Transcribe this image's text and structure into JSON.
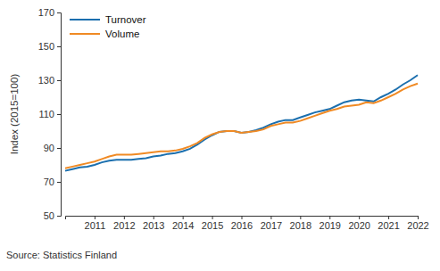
{
  "chart_data": {
    "type": "line",
    "y_label": "Index (2015=100)",
    "annotations": [
      "Source: Statistics Finland"
    ],
    "categories": [
      null,
      null,
      null,
      null,
      "2011",
      null,
      null,
      null,
      "2012",
      null,
      null,
      null,
      "2013",
      null,
      null,
      null,
      "2014",
      null,
      null,
      null,
      "2015",
      null,
      null,
      null,
      "2016",
      null,
      null,
      null,
      "2017",
      null,
      null,
      null,
      "2018",
      null,
      null,
      null,
      "2019",
      null,
      null,
      null,
      "2020",
      null,
      null,
      null,
      "2021",
      null,
      null,
      null,
      "2022"
    ],
    "series": [
      {
        "name": "Turnover",
        "color": "#1b6fae",
        "values": [
          76.5,
          77.5,
          78.5,
          79,
          80,
          81.5,
          82.5,
          83,
          83,
          83,
          83.5,
          84,
          85,
          85.5,
          86.5,
          87,
          88,
          89.5,
          92,
          95,
          97.5,
          99.5,
          100,
          100,
          99,
          99.5,
          100.5,
          102,
          104,
          105.5,
          106.5,
          106.5,
          108,
          109.5,
          111,
          112,
          113,
          115,
          117,
          118,
          118.5,
          118,
          117.5,
          120,
          122,
          124.5,
          127.5,
          130,
          133
        ]
      },
      {
        "name": "Volume",
        "color": "#f08a24",
        "values": [
          78,
          79,
          80,
          81,
          82,
          83.5,
          85,
          86,
          86,
          86,
          86.5,
          87,
          87.5,
          88,
          88,
          88.5,
          89.5,
          91,
          93,
          96,
          98,
          99.5,
          100,
          100,
          99,
          99.5,
          100,
          101,
          103,
          104,
          105,
          105,
          106,
          107.5,
          109,
          110.5,
          112,
          113,
          114.5,
          115,
          115.5,
          117,
          116.5,
          118,
          120,
          122,
          124.5,
          126.5,
          128
        ]
      }
    ],
    "ylim": [
      50,
      170
    ],
    "yticks": [
      50,
      70,
      90,
      110,
      130,
      150,
      170
    ],
    "grid": false,
    "legend": "top-left"
  }
}
